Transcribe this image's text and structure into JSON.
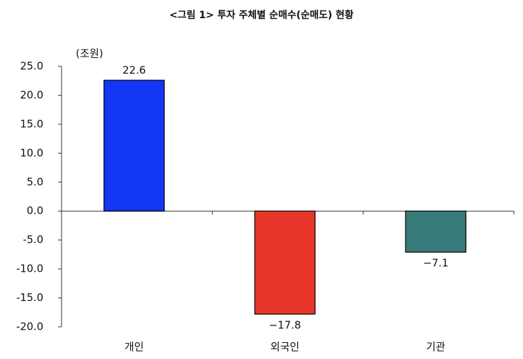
{
  "chart_data": {
    "type": "bar",
    "title": "<그림 1> 투자 주체별 순매수(순매도) 현황",
    "y_unit": "(조원)",
    "categories": [
      "개인",
      "외국인",
      "기관"
    ],
    "values": [
      22.6,
      -17.8,
      -7.1
    ],
    "value_labels": [
      "22.6",
      "−17.8",
      "−7.1"
    ],
    "colors": [
      "#1436f5",
      "#e8352a",
      "#377b7a"
    ],
    "ylim": [
      -20,
      25
    ],
    "yticks": [
      {
        "value": -20,
        "label": "-20.0"
      },
      {
        "value": -15,
        "label": "-15.0"
      },
      {
        "value": -10,
        "label": "-10.0"
      },
      {
        "value": -5,
        "label": "-5.0"
      },
      {
        "value": 0,
        "label": "0.0"
      },
      {
        "value": 5,
        "label": "5.0"
      },
      {
        "value": 10,
        "label": "10.0"
      },
      {
        "value": 15,
        "label": "15.0"
      },
      {
        "value": 20,
        "label": "20.0"
      },
      {
        "value": 25,
        "label": "25.0"
      }
    ],
    "grid": false
  }
}
